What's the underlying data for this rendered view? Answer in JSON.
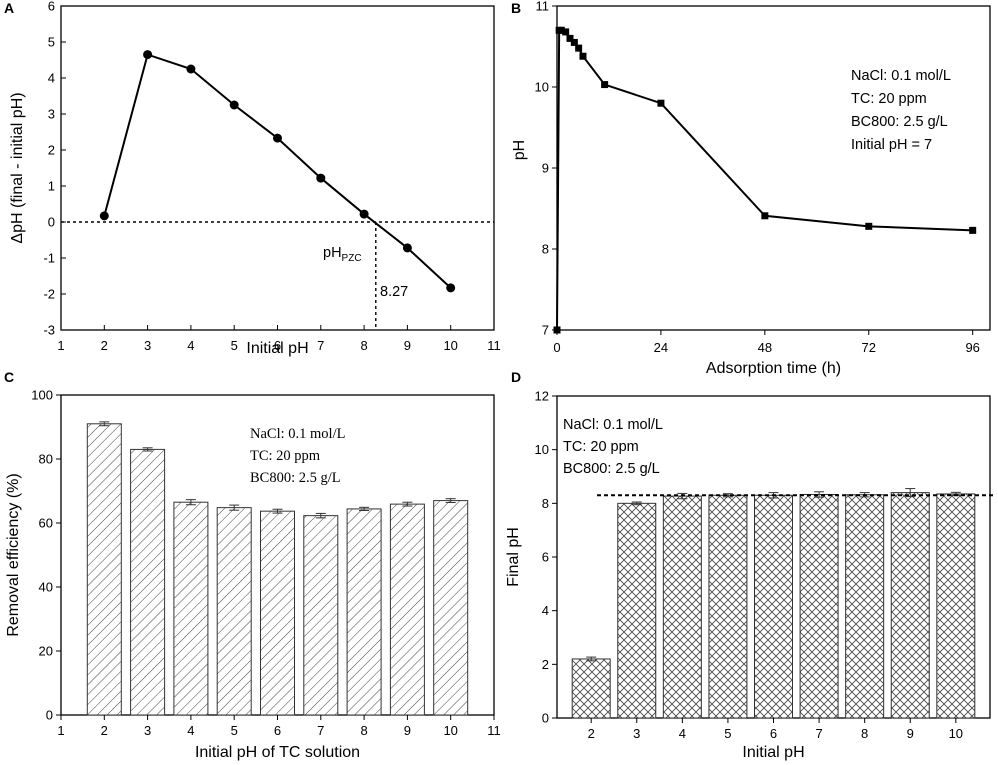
{
  "chart_data": [
    {
      "id": "A",
      "type": "line",
      "panel_label": "A",
      "xlabel": "Initial pH",
      "ylabel": "ΔpH (final - initial pH)",
      "xlim": [
        1,
        11
      ],
      "ylim": [
        -3,
        6
      ],
      "xticks": [
        "1",
        "2",
        "3",
        "4",
        "5",
        "6",
        "7",
        "8",
        "9",
        "10",
        "11"
      ],
      "yticks": [
        "-3",
        "-2",
        "-1",
        "0",
        "1",
        "2",
        "3",
        "4",
        "5",
        "6"
      ],
      "x": [
        2,
        3,
        4,
        5,
        6,
        7,
        8,
        9,
        10
      ],
      "y": [
        0.17,
        4.65,
        4.25,
        3.25,
        2.33,
        1.22,
        0.22,
        -0.72,
        -1.83
      ],
      "reference_hline_y": 0,
      "pzc": 8.27,
      "pzc_label_main": "pH",
      "pzc_label_sub": "PZC",
      "pzc_value_label": "8.27"
    },
    {
      "id": "B",
      "type": "line",
      "panel_label": "B",
      "xlabel": "Adsorption time (h)",
      "ylabel": "pH",
      "xlim": [
        0,
        100
      ],
      "ylim": [
        7,
        11
      ],
      "xticks": [
        "0",
        "24",
        "48",
        "72",
        "96"
      ],
      "xtick_values": [
        0,
        24,
        48,
        72,
        96
      ],
      "yticks": [
        "7",
        "8",
        "9",
        "10",
        "11"
      ],
      "x": [
        0,
        0.5,
        1,
        2,
        3,
        4,
        5,
        6,
        11,
        24,
        48,
        72,
        96
      ],
      "y": [
        7.0,
        10.7,
        10.7,
        10.68,
        10.6,
        10.55,
        10.48,
        10.38,
        10.03,
        9.8,
        8.41,
        8.28,
        8.23
      ],
      "annotations": [
        "NaCl: 0.1 mol/L",
        "TC: 20 ppm",
        "BC800: 2.5 g/L",
        "Initial pH = 7"
      ]
    },
    {
      "id": "C",
      "type": "bar",
      "panel_label": "C",
      "xlabel": "Initial pH of TC solution",
      "ylabel": "Removal efficiency (%)",
      "xlim": [
        1,
        11
      ],
      "ylim": [
        0,
        100
      ],
      "xticks": [
        "1",
        "2",
        "3",
        "4",
        "5",
        "6",
        "7",
        "8",
        "9",
        "10",
        "11"
      ],
      "yticks": [
        "0",
        "20",
        "40",
        "60",
        "80",
        "100"
      ],
      "categories": [
        "2",
        "3",
        "4",
        "5",
        "6",
        "7",
        "8",
        "9",
        "10"
      ],
      "values": [
        91.0,
        83.0,
        66.5,
        64.8,
        63.7,
        62.3,
        64.4,
        65.9,
        67.0
      ],
      "errors": [
        0.6,
        0.5,
        0.8,
        0.8,
        0.6,
        0.7,
        0.5,
        0.6,
        0.6
      ],
      "pattern": "diagonal-hatch",
      "annotations": [
        "NaCl: 0.1 mol/L",
        "TC: 20 ppm",
        "BC800: 2.5 g/L"
      ]
    },
    {
      "id": "D",
      "type": "bar",
      "panel_label": "D",
      "xlabel": "Initial pH",
      "ylabel": "Final pH",
      "ylim": [
        0,
        12
      ],
      "yticks": [
        "0",
        "2",
        "4",
        "6",
        "8",
        "10",
        "12"
      ],
      "categories": [
        "2",
        "3",
        "4",
        "5",
        "6",
        "7",
        "8",
        "9",
        "10"
      ],
      "values": [
        2.2,
        8.0,
        8.27,
        8.3,
        8.3,
        8.33,
        8.32,
        8.4,
        8.35
      ],
      "errors": [
        0.07,
        0.05,
        0.1,
        0.06,
        0.1,
        0.1,
        0.08,
        0.15,
        0.06
      ],
      "reference_hline_y": 8.3,
      "pattern": "crosshatch",
      "annotations": [
        "NaCl: 0.1 mol/L",
        "TC: 20 ppm",
        "BC800: 2.5 g/L"
      ]
    }
  ]
}
